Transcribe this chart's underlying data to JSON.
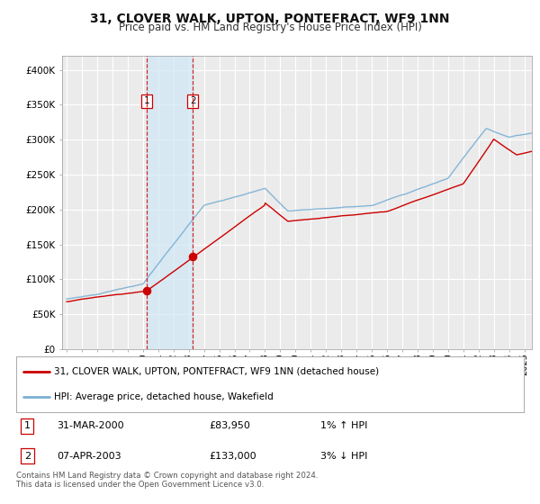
{
  "title": "31, CLOVER WALK, UPTON, PONTEFRACT, WF9 1NN",
  "subtitle": "Price paid vs. HM Land Registry's House Price Index (HPI)",
  "ylim": [
    0,
    420000
  ],
  "yticks": [
    0,
    50000,
    100000,
    150000,
    200000,
    250000,
    300000,
    350000,
    400000
  ],
  "ytick_labels": [
    "£0",
    "£50K",
    "£100K",
    "£150K",
    "£200K",
    "£250K",
    "£300K",
    "£350K",
    "£400K"
  ],
  "xlim_start": 1994.7,
  "xlim_end": 2025.5,
  "background_color": "#ffffff",
  "plot_bg_color": "#ebebeb",
  "grid_color": "#ffffff",
  "red_line_color": "#cc0000",
  "blue_line_color": "#7ab0d4",
  "transaction1_date": 2000.24,
  "transaction1_value": 83950,
  "transaction2_date": 2003.27,
  "transaction2_value": 133000,
  "shade_color": "#d0e8f5",
  "shade_alpha": 0.7,
  "legend_label_red": "31, CLOVER WALK, UPTON, PONTEFRACT, WF9 1NN (detached house)",
  "legend_label_blue": "HPI: Average price, detached house, Wakefield",
  "table_row1": [
    "1",
    "31-MAR-2000",
    "£83,950",
    "1% ↑ HPI"
  ],
  "table_row2": [
    "2",
    "07-APR-2003",
    "£133,000",
    "3% ↓ HPI"
  ],
  "footnote": "Contains HM Land Registry data © Crown copyright and database right 2024.\nThis data is licensed under the Open Government Licence v3.0.",
  "title_fontsize": 10,
  "subtitle_fontsize": 8.5
}
